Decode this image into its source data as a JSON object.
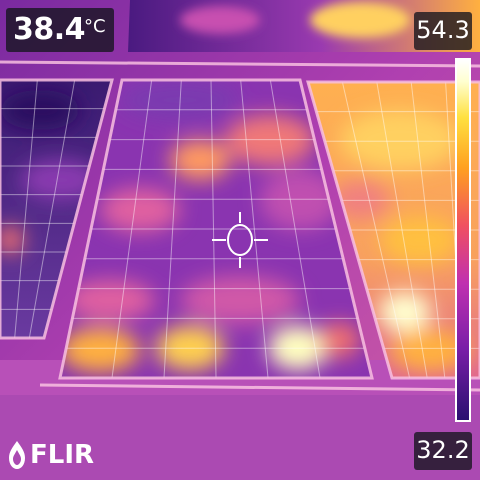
{
  "spot_meter": {
    "value": "38.4",
    "unit": "°C"
  },
  "scale": {
    "max": "54.3",
    "min": "32.2"
  },
  "brand": {
    "logo_text": "FLIR"
  },
  "colors": {
    "palette": "iron",
    "overlay_text": "#ffffff",
    "overlay_bg": "#141420"
  },
  "icons": {
    "crosshair": "crosshair-icon",
    "logo": "flir-flame-icon"
  }
}
